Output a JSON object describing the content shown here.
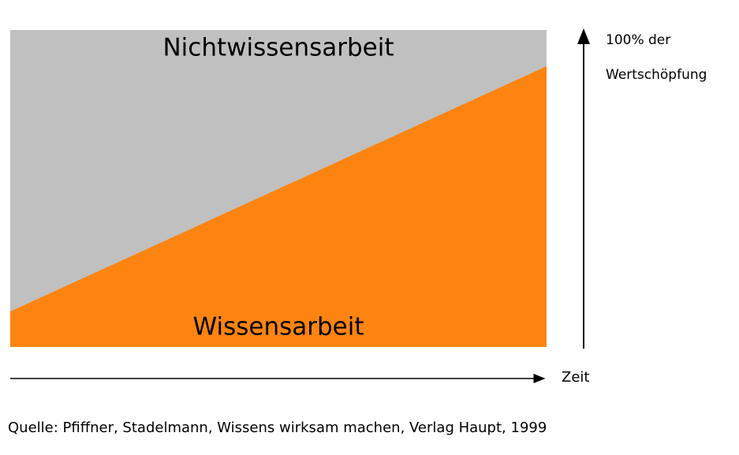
{
  "areas": {
    "upper": "Nichtwissensarbeit",
    "lower": "Wissensarbeit"
  },
  "y_axis": {
    "label_line1": "100% der",
    "label_line2": "Wertschöpfung"
  },
  "x_axis": {
    "label": "Zeit"
  },
  "source": "Quelle: Pfiffner, Stadelmann, Wissens wirksam machen, Verlag Haupt, 1999"
}
